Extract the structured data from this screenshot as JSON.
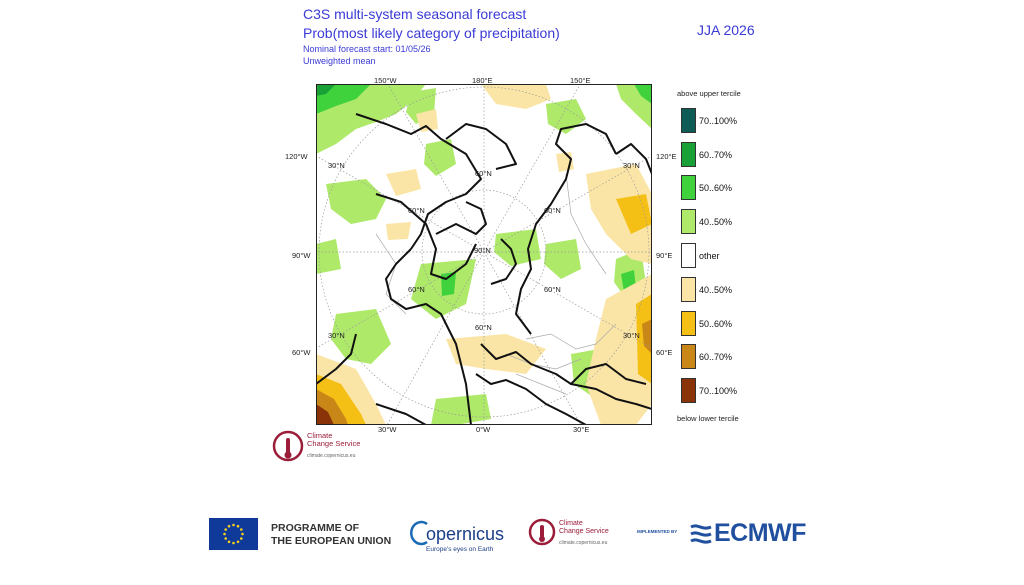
{
  "header": {
    "title_line1": "C3S multi-system seasonal forecast",
    "title_line2": "Prob(most likely category of precipitation)",
    "start": "Nominal forecast start: 01/05/26",
    "mean": "Unweighted mean",
    "season": "JJA 2026"
  },
  "map": {
    "projection": "polar stereographic",
    "top_lon_labels": [
      "150°W",
      "180°E",
      "150°E"
    ],
    "bottom_lon_labels": [
      "30°W",
      "0°W",
      "30°E"
    ],
    "left_lon_labels": [
      "120°W",
      "90°W",
      "60°W"
    ],
    "right_lon_labels": [
      "120°E",
      "90°E",
      "60°E"
    ],
    "lat_labels": [
      "30°N",
      "60°N",
      "90°N"
    ],
    "map_labels": [
      "30°N",
      "30°N",
      "60°N",
      "60°N",
      "60°N",
      "90°N",
      "60°N",
      "60°N",
      "30°N",
      "60°N",
      "30°N"
    ]
  },
  "legend": {
    "top_label": "above upper tercile",
    "bottom_label": "below lower tercile",
    "items": [
      {
        "label": "70..100%",
        "color": "#0e5a55"
      },
      {
        "label": "60..70%",
        "color": "#19a138"
      },
      {
        "label": "50..60%",
        "color": "#3fd23c"
      },
      {
        "label": "40..50%",
        "color": "#aee96a"
      },
      {
        "label": "other",
        "color": "#ffffff"
      },
      {
        "label": "40..50%",
        "color": "#fbe5a6"
      },
      {
        "label": "50..60%",
        "color": "#f5c016"
      },
      {
        "label": "60..70%",
        "color": "#c98718"
      },
      {
        "label": "70..100%",
        "color": "#8a3208"
      }
    ]
  },
  "small_logo": {
    "line1": "Climate",
    "line2": "Change Service",
    "url": "climate.copernicus.eu"
  },
  "footer": {
    "eu_line1": "PROGRAMME OF",
    "eu_line2": "THE EUROPEAN UNION",
    "copernicus": "opernicus",
    "copernicus_tag": "Europe's eyes on Earth",
    "ccs_line1": "Climate",
    "ccs_line2": "Change Service",
    "ccs_url": "climate.copernicus.eu",
    "implemented_by": "IMPLEMENTED BY",
    "ecmwf": "ECMWF"
  }
}
